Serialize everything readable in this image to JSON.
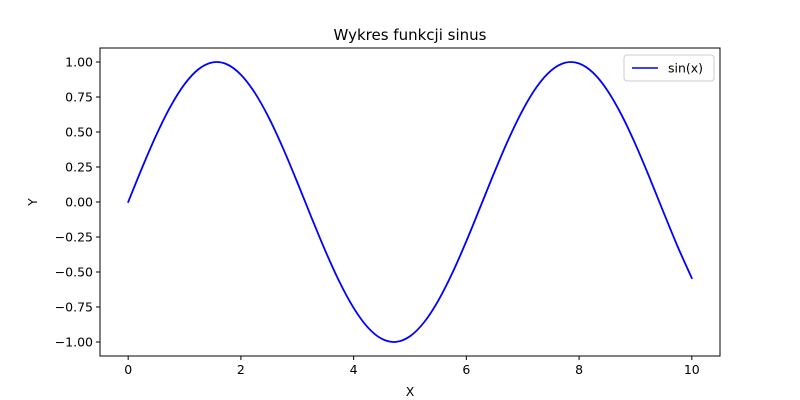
{
  "chart_data": {
    "type": "line",
    "title": "Wykres funkcji sinus",
    "xlabel": "X",
    "ylabel": "Y",
    "xlim": [
      -0.5,
      10.5
    ],
    "ylim": [
      -1.1,
      1.1
    ],
    "xticks": [
      0,
      2,
      4,
      6,
      8,
      10
    ],
    "xtick_labels": [
      "0",
      "2",
      "4",
      "6",
      "8",
      "10"
    ],
    "yticks": [
      -1.0,
      -0.75,
      -0.5,
      -0.25,
      0.0,
      0.25,
      0.5,
      0.75,
      1.0
    ],
    "ytick_labels": [
      "−1.00",
      "−0.75",
      "−0.50",
      "−0.25",
      "0.00",
      "0.25",
      "0.50",
      "0.75",
      "1.00"
    ],
    "grid": false,
    "legend_position": "top-right",
    "series": [
      {
        "name": "sin(x)",
        "color": "#0000ff",
        "x": [
          0,
          0.25,
          0.5,
          0.75,
          1,
          1.25,
          1.5,
          1.75,
          2,
          2.25,
          2.5,
          2.75,
          3,
          3.25,
          3.5,
          3.75,
          4,
          4.25,
          4.5,
          4.75,
          5,
          5.25,
          5.5,
          5.75,
          6,
          6.25,
          6.5,
          6.75,
          7,
          7.25,
          7.5,
          7.75,
          8,
          8.25,
          8.5,
          8.75,
          9,
          9.25,
          9.5,
          9.75,
          10
        ],
        "y": [
          0.0,
          0.2474,
          0.4794,
          0.6816,
          0.8415,
          0.949,
          0.9975,
          0.984,
          0.9093,
          0.7781,
          0.5985,
          0.3817,
          0.1411,
          -0.1082,
          -0.3508,
          -0.5716,
          -0.7568,
          -0.895,
          -0.9775,
          -0.9993,
          -0.9589,
          -0.8589,
          -0.7055,
          -0.5083,
          -0.2794,
          -0.0332,
          0.2151,
          0.45,
          0.657,
          0.8231,
          0.938,
          0.9946,
          0.9894,
          0.9228,
          0.7985,
          0.6247,
          0.4121,
          0.1743,
          -0.0752,
          -0.3195,
          -0.544
        ]
      }
    ]
  }
}
